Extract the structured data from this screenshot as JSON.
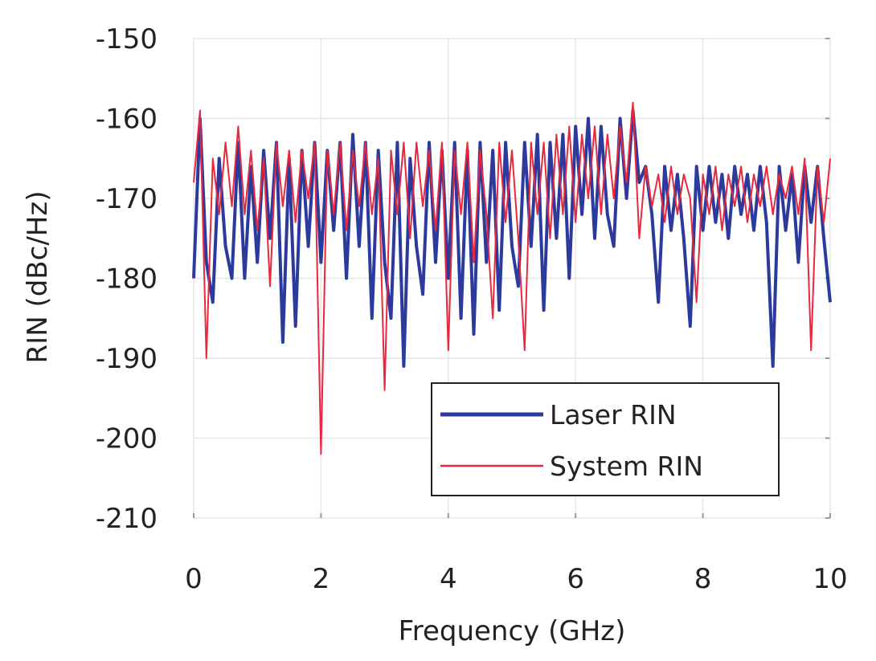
{
  "chart_data": {
    "type": "line",
    "title": "",
    "xlabel": "Frequency (GHz)",
    "ylabel": "RIN (dBc/Hz)",
    "xlim": [
      0,
      10
    ],
    "ylim": [
      -210,
      -150
    ],
    "xticks": [
      "0",
      "2",
      "4",
      "6",
      "8",
      "10"
    ],
    "yticks": [
      "-150",
      "-160",
      "-170",
      "-180",
      "-190",
      "-200",
      "-210"
    ],
    "grid": true,
    "legend_position": "bottom-right",
    "x_start": 0,
    "x_step": 0.1,
    "series": [
      {
        "name": "Laser RIN",
        "color": "#2b3a9c",
        "values": [
          -180,
          -160,
          -178,
          -183,
          -165,
          -176,
          -180,
          -163,
          -180,
          -166,
          -178,
          -164,
          -175,
          -163,
          -188,
          -165,
          -186,
          -164,
          -176,
          -163,
          -178,
          -164,
          -174,
          -163,
          -180,
          -162,
          -176,
          -163,
          -185,
          -164,
          -178,
          -185,
          -163,
          -191,
          -165,
          -176,
          -182,
          -163,
          -178,
          -164,
          -180,
          -163,
          -185,
          -164,
          -187,
          -163,
          -178,
          -164,
          -184,
          -163,
          -176,
          -181,
          -163,
          -176,
          -162,
          -184,
          -163,
          -175,
          -162,
          -180,
          -161,
          -172,
          -160,
          -175,
          -161,
          -172,
          -176,
          -160,
          -170,
          -159,
          -168,
          -166,
          -172,
          -183,
          -166,
          -174,
          -167,
          -175,
          -186,
          -166,
          -174,
          -166,
          -173,
          -167,
          -175,
          -166,
          -172,
          -167,
          -174,
          -166,
          -173,
          -191,
          -166,
          -174,
          -167,
          -178,
          -166,
          -173,
          -166,
          -175,
          -183
        ]
      },
      {
        "name": "System RIN",
        "color": "#e8283c",
        "values": [
          -168,
          -159,
          -190,
          -165,
          -172,
          -163,
          -171,
          -161,
          -172,
          -164,
          -174,
          -165,
          -181,
          -163,
          -171,
          -164,
          -173,
          -164,
          -170,
          -163,
          -202,
          -164,
          -172,
          -163,
          -174,
          -164,
          -171,
          -163,
          -172,
          -165,
          -194,
          -164,
          -172,
          -163,
          -175,
          -163,
          -171,
          -164,
          -174,
          -163,
          -189,
          -164,
          -172,
          -163,
          -178,
          -164,
          -172,
          -185,
          -163,
          -173,
          -164,
          -175,
          -189,
          -163,
          -172,
          -163,
          -175,
          -162,
          -172,
          -161,
          -173,
          -162,
          -170,
          -161,
          -172,
          -162,
          -170,
          -161,
          -168,
          -158,
          -175,
          -166,
          -171,
          -167,
          -173,
          -166,
          -172,
          -167,
          -170,
          -183,
          -167,
          -172,
          -166,
          -174,
          -167,
          -171,
          -166,
          -173,
          -167,
          -171,
          -166,
          -172,
          -167,
          -170,
          -166,
          -172,
          -165,
          -189,
          -166,
          -173,
          -165
        ]
      }
    ]
  }
}
